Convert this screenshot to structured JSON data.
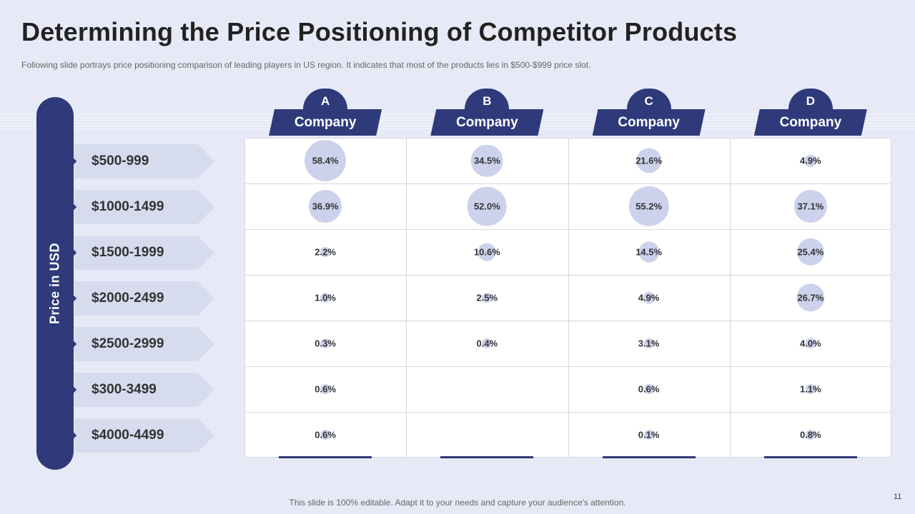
{
  "title": "Determining the Price Positioning of Competitor Products",
  "subtitle": "Following slide portrays price positioning comparison of leading players in US region. It indicates that most of the products lies in $500-$999  price slot.",
  "footer": "This slide is 100% editable. Adapt it to your needs and capture your audience's attention.",
  "page_number": "11",
  "colors": {
    "primary": "#2e3a7a",
    "bubble": "#cdd2ec",
    "label_bg": "#d6dbee",
    "background": "#e7eaf6"
  },
  "chart_data": {
    "type": "bubble-table",
    "title": "Determining the Price Positioning of Competitor Products",
    "ylabel": "Price in USD",
    "categories": [
      "$500-999",
      "$1000-1499",
      "$1500-1999",
      "$2000-2499",
      "$2500-2999",
      "$300-3499",
      "$4000-4499"
    ],
    "series": [
      {
        "letter": "A",
        "name": "Company",
        "values": [
          58.4,
          36.9,
          2.2,
          1.0,
          0.3,
          0.6,
          0.6
        ],
        "labels": [
          "58.4%",
          "36.9%",
          "2.2%",
          "1.0%",
          "0.3%",
          "0.6%",
          "0.6%"
        ]
      },
      {
        "letter": "B",
        "name": "Company",
        "values": [
          34.5,
          52.0,
          10.6,
          2.5,
          0.4,
          null,
          null
        ],
        "labels": [
          "34.5%",
          "52.0%",
          "10.6%",
          "2.5%",
          "0.4%",
          "",
          ""
        ]
      },
      {
        "letter": "C",
        "name": "Company",
        "values": [
          21.6,
          55.2,
          14.5,
          4.9,
          3.1,
          0.6,
          0.1
        ],
        "labels": [
          "21.6%",
          "55.2%",
          "14.5%",
          "4.9%",
          "3.1%",
          "0.6%",
          "0.1%"
        ]
      },
      {
        "letter": "D",
        "name": "Company",
        "values": [
          4.9,
          37.1,
          25.4,
          26.7,
          4.0,
          1.1,
          0.8
        ],
        "labels": [
          "4.9%",
          "37.1%",
          "25.4%",
          "26.7%",
          "4.0%",
          "1.1%",
          "0.8%"
        ]
      }
    ]
  }
}
